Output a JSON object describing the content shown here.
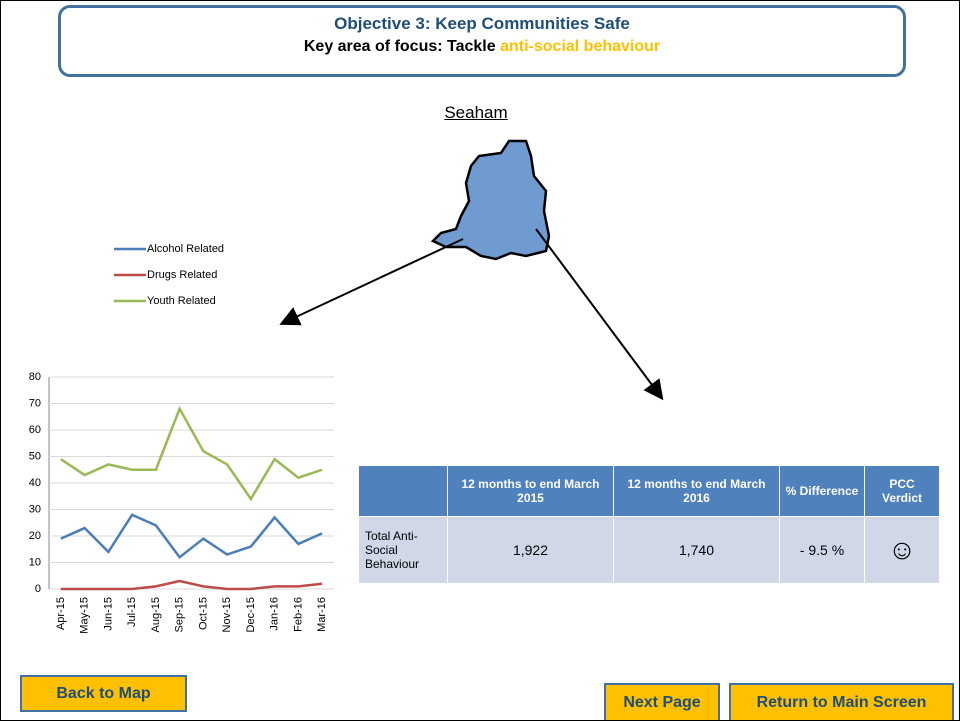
{
  "header": {
    "title": "Objective 3: Keep Communities Safe",
    "subtitle": "Key area of focus: Tackle",
    "highlight": "anti-social behaviour"
  },
  "area": "Seaham",
  "chart_data": {
    "type": "line",
    "categories": [
      "Apr-15",
      "May-15",
      "Jun-15",
      "Jul-15",
      "Aug-15",
      "Sep-15",
      "Oct-15",
      "Nov-15",
      "Dec-15",
      "Jan-16",
      "Feb-16",
      "Mar-16"
    ],
    "series": [
      {
        "name": "Alcohol Related",
        "color": "#4a7ebb",
        "values": [
          19,
          23,
          14,
          28,
          24,
          12,
          19,
          13,
          16,
          27,
          17,
          21
        ]
      },
      {
        "name": "Drugs Related",
        "color": "#be4b48",
        "values": [
          0,
          0,
          0,
          0,
          1,
          3,
          1,
          0,
          0,
          1,
          1,
          2
        ]
      },
      {
        "name": "Youth Related",
        "color": "#98b954",
        "values": [
          49,
          43,
          47,
          45,
          45,
          68,
          52,
          47,
          34,
          49,
          42,
          45
        ]
      }
    ],
    "ylim": [
      0,
      80
    ],
    "yticks": [
      0,
      10,
      20,
      30,
      40,
      50,
      60,
      70,
      80
    ],
    "grid": true
  },
  "table": {
    "headers": [
      "12 months to end March 2015",
      "12 months to end March 2016",
      "% Difference",
      "PCC Verdict"
    ],
    "rows": [
      [
        "Total Anti-Social Behaviour",
        "1,922",
        "1,740",
        "- 9.5 %",
        "☺"
      ]
    ]
  },
  "buttons": [
    "Back to Map",
    "Next Page",
    "Return to Main Screen"
  ]
}
